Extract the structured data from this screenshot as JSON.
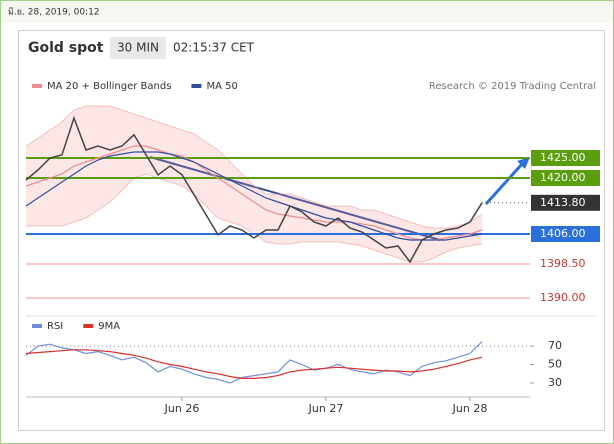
{
  "header": {
    "date_bar": "มิ.ย. 28, 2019, 00:12",
    "title": "Gold spot",
    "timeframe": "30 MIN",
    "time": "02:15:37 CET",
    "attribution": "Research © 2019 Trading Central"
  },
  "chart_data": [
    {
      "type": "line",
      "xlim": [
        0,
        42
      ],
      "ylim": [
        1387,
        1439.5
      ],
      "price": {
        "color": "#444444",
        "values": [
          1419.5,
          1422,
          1425,
          1425.8,
          1435,
          1427,
          1428,
          1427,
          1428,
          1430.8,
          1425.8,
          1420.8,
          1423,
          1420.8,
          1415.8,
          1410.8,
          1405.8,
          1408,
          1407,
          1405,
          1407,
          1407,
          1413,
          1411.5,
          1409,
          1408,
          1410,
          1407.5,
          1406.5,
          1404.5,
          1402.5,
          1403,
          1399,
          1404.5,
          1406,
          1407,
          1407.5,
          1409,
          1413.8
        ]
      },
      "series": [
        {
          "name": "MA 20 + Bollinger Bands",
          "color": "#f08c8c",
          "values": [
            1418,
            1419,
            1420,
            1421,
            1423,
            1424,
            1425,
            1426,
            1427,
            1428,
            1428,
            1427,
            1426,
            1425.5,
            1424,
            1422,
            1420,
            1418,
            1416,
            1414,
            1412,
            1411,
            1410.5,
            1410,
            1409.5,
            1409,
            1409,
            1409,
            1408.5,
            1408,
            1407,
            1406,
            1405,
            1404.5,
            1404.5,
            1405,
            1405.5,
            1406,
            1407
          ],
          "upper": [
            1428,
            1430,
            1432,
            1434,
            1437,
            1438,
            1438,
            1438,
            1437,
            1436,
            1435,
            1434,
            1433,
            1432,
            1431,
            1429,
            1427,
            1424,
            1421,
            1418,
            1416,
            1416,
            1416,
            1415,
            1414,
            1413,
            1413,
            1413,
            1412,
            1412,
            1411,
            1410,
            1409,
            1408,
            1407.5,
            1407.5,
            1408,
            1409,
            1411
          ],
          "lower": [
            1408,
            1408,
            1408,
            1408,
            1409,
            1410,
            1412,
            1414,
            1417,
            1420,
            1421,
            1420,
            1419,
            1418,
            1416,
            1413,
            1410,
            1409,
            1408,
            1406,
            1404,
            1403.5,
            1403.5,
            1404,
            1404,
            1404,
            1404,
            1403.5,
            1403,
            1402,
            1401,
            1400,
            1399,
            1399,
            1400,
            1401.5,
            1402.5,
            1403,
            1403.5
          ]
        },
        {
          "name": "MA 50",
          "color": "#2f4f9e",
          "values": [
            1413,
            1415,
            1417,
            1419,
            1421,
            1423,
            1424.5,
            1425.5,
            1426,
            1426.5,
            1426.5,
            1426.5,
            1426,
            1425,
            1424,
            1422.5,
            1421,
            1419.5,
            1418,
            1416.5,
            1415,
            1414,
            1413,
            1412,
            1411,
            1410,
            1409.5,
            1409,
            1408,
            1407,
            1406,
            1405,
            1404.5,
            1404.5,
            1404.5,
            1404.5,
            1405,
            1405.5,
            1406
          ]
        }
      ],
      "levels": [
        {
          "value": 1425,
          "label": "1425.00",
          "color": "#5a9e0f",
          "style": "box"
        },
        {
          "value": 1420,
          "label": "1420.00",
          "color": "#5a9e0f",
          "style": "box"
        },
        {
          "value": 1413.8,
          "label": "1413.80",
          "color": "#333333",
          "style": "dotted"
        },
        {
          "value": 1406,
          "label": "1406.00",
          "color": "#2a6fdb",
          "style": "box"
        },
        {
          "value": 1398.5,
          "label": "1398.50",
          "color": "#f08c8c",
          "style": "text"
        },
        {
          "value": 1390,
          "label": "1390.00",
          "color": "#f08c8c",
          "style": "text"
        }
      ]
    },
    {
      "type": "line",
      "xlim": [
        0,
        42
      ],
      "ylim": [
        17,
        82
      ],
      "xticks": [
        {
          "value": 13,
          "label": "Jun 26"
        },
        {
          "value": 25,
          "label": "Jun 27"
        },
        {
          "value": 37,
          "label": "Jun 28"
        }
      ],
      "yticks": [
        70,
        50,
        30
      ],
      "ref_level": 70,
      "series": [
        {
          "name": "RSI",
          "color": "#6f8fd8",
          "values": [
            60,
            70,
            72,
            68,
            66,
            62,
            64,
            60,
            55,
            58,
            52,
            42,
            48,
            45,
            40,
            36,
            34,
            30,
            36,
            38,
            40,
            42,
            55,
            50,
            44,
            46,
            50,
            45,
            42,
            40,
            44,
            42,
            38,
            48,
            52,
            54,
            58,
            62,
            75
          ]
        },
        {
          "name": "9MA",
          "color": "#d9302c",
          "values": [
            62,
            63,
            64,
            65,
            66,
            66,
            65,
            64,
            62,
            60,
            57,
            53,
            50,
            48,
            45,
            42,
            40,
            37,
            35,
            35,
            36,
            38,
            42,
            44,
            45,
            46,
            47,
            46,
            45,
            44,
            43,
            43,
            42,
            43,
            45,
            48,
            51,
            55,
            58
          ]
        }
      ]
    }
  ]
}
